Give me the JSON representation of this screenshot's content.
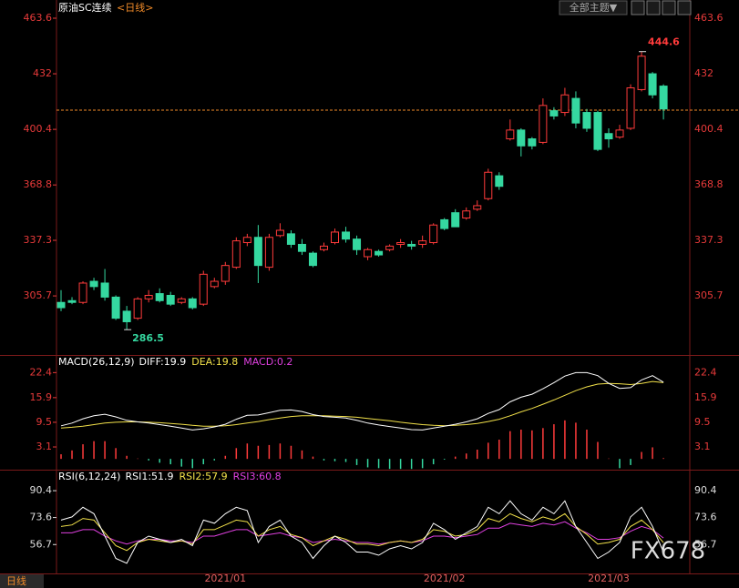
{
  "chart_data": [
    {
      "type": "candlestick",
      "title": "原油SC连续",
      "subtitle": "<日线>",
      "categories": [
        null,
        null,
        null,
        null,
        null,
        null,
        null,
        null,
        null,
        null,
        null,
        null,
        null,
        null,
        null,
        "2021/01",
        null,
        null,
        null,
        null,
        null,
        null,
        null,
        null,
        null,
        null,
        null,
        null,
        null,
        null,
        null,
        null,
        null,
        null,
        null,
        "2021/02",
        null,
        null,
        null,
        null,
        null,
        null,
        null,
        null,
        null,
        null,
        null,
        null,
        null,
        null,
        "2021/03",
        null,
        null,
        null,
        null,
        null
      ],
      "open": [
        302,
        303,
        302,
        314,
        313,
        305,
        297,
        293,
        304,
        307,
        306,
        302,
        304,
        301,
        311,
        314,
        322,
        336,
        339,
        322,
        340,
        341,
        335,
        330,
        332,
        336,
        342,
        338,
        328,
        331,
        332,
        335,
        335,
        335,
        336,
        349,
        353,
        350,
        355,
        361,
        374,
        395,
        400,
        395,
        393,
        411,
        410,
        418,
        410,
        410,
        398,
        396,
        401,
        423,
        432,
        425
      ],
      "high": [
        309,
        305,
        314,
        316,
        321,
        306,
        300,
        305,
        309,
        310,
        308,
        305,
        305,
        320,
        316,
        325,
        339,
        341,
        346,
        341,
        347,
        343,
        338,
        331,
        336,
        344,
        345,
        340,
        333,
        332,
        335,
        338,
        337,
        340,
        347,
        350,
        355,
        356,
        360,
        378,
        376,
        406,
        401,
        396,
        418,
        413,
        424,
        422,
        412,
        411,
        401,
        403,
        426,
        444.6,
        433,
        426
      ],
      "low": [
        297,
        301,
        301,
        309,
        303,
        292,
        286.5,
        292,
        302,
        302,
        300,
        301,
        298,
        300,
        310,
        312,
        321,
        334,
        313,
        320,
        339,
        333,
        329,
        322,
        331,
        335,
        336,
        329,
        326,
        328,
        331,
        333,
        332,
        333,
        335,
        343,
        345,
        349,
        354,
        360,
        366,
        394,
        385,
        389,
        392,
        406,
        408,
        401,
        399,
        388,
        390,
        395,
        400,
        422,
        418,
        406
      ],
      "close": [
        299,
        302,
        313,
        311,
        305,
        293,
        291,
        304,
        306,
        303,
        301,
        304,
        299,
        318,
        314,
        323,
        337,
        339,
        323,
        339,
        343,
        335,
        331,
        323,
        334,
        342,
        338,
        332,
        332,
        329,
        334,
        336,
        334,
        337,
        346,
        344,
        345,
        354,
        357,
        376,
        368,
        400,
        391,
        391,
        414,
        408,
        420,
        404,
        401,
        389,
        395,
        400,
        424,
        442,
        420,
        412
      ],
      "up_color": "#ff3b3b",
      "down_color": "#35d8a0",
      "ylim": [
        272.1,
        463.6
      ],
      "yticks": [
        305.7,
        337.3,
        368.8,
        400.4,
        432.0,
        463.6
      ],
      "last_price": 411.3,
      "last_price_color": "#f08a28",
      "max_label": "444.6",
      "min_label": "286.5"
    },
    {
      "type": "macd",
      "title": "MACD(26,12,9)",
      "series": [
        {
          "name": "DIFF:19.9",
          "color": "#ffffff",
          "values": [
            8.6,
            9.3,
            10.4,
            11.2,
            11.6,
            10.9,
            10.0,
            9.6,
            9.3,
            8.9,
            8.5,
            8.0,
            7.5,
            7.8,
            8.3,
            9.0,
            10.3,
            11.3,
            11.4,
            12.0,
            12.6,
            12.7,
            12.3,
            11.5,
            11.0,
            10.8,
            10.6,
            10.0,
            9.3,
            8.8,
            8.4,
            8.0,
            7.6,
            7.5,
            8.0,
            8.5,
            9.0,
            9.6,
            10.4,
            11.8,
            12.8,
            14.8,
            16.0,
            16.8,
            18.2,
            19.8,
            21.5,
            22.4,
            22.4,
            21.6,
            19.6,
            18.3,
            18.5,
            20.5,
            21.6,
            19.9
          ]
        },
        {
          "name": "DEA:19.8",
          "color": "#f2e14a",
          "values": [
            8.0,
            8.2,
            8.5,
            8.9,
            9.3,
            9.5,
            9.6,
            9.6,
            9.5,
            9.4,
            9.2,
            9.0,
            8.7,
            8.5,
            8.5,
            8.6,
            8.9,
            9.3,
            9.7,
            10.2,
            10.6,
            11.0,
            11.2,
            11.2,
            11.2,
            11.1,
            11.0,
            10.8,
            10.5,
            10.2,
            9.9,
            9.5,
            9.2,
            8.9,
            8.7,
            8.6,
            8.7,
            8.9,
            9.2,
            9.7,
            10.3,
            11.2,
            12.2,
            13.1,
            14.2,
            15.3,
            16.5,
            17.7,
            18.7,
            19.4,
            19.6,
            19.5,
            19.3,
            19.6,
            20.1,
            19.8
          ]
        },
        {
          "name": "MACD:0.2",
          "color": "#e040e0",
          "up_color": "#ff3b3b",
          "down_color": "#35d8a0",
          "values": [
            1.2,
            2.2,
            3.8,
            4.6,
            4.6,
            2.8,
            0.8,
            0.1,
            -0.4,
            -1.0,
            -1.4,
            -2.0,
            -2.4,
            -1.4,
            -0.4,
            0.8,
            2.8,
            4.0,
            3.4,
            3.6,
            4.0,
            3.4,
            2.2,
            0.6,
            -0.4,
            -0.6,
            -0.8,
            -1.6,
            -2.2,
            -2.4,
            -2.6,
            -2.6,
            -2.6,
            -2.4,
            -1.4,
            -0.2,
            0.6,
            1.4,
            2.4,
            4.2,
            5.0,
            7.2,
            7.6,
            7.4,
            8.0,
            9.0,
            10.0,
            9.4,
            7.6,
            4.4,
            0.1,
            -2.4,
            -1.6,
            1.8,
            3.0,
            0.2
          ]
        }
      ],
      "ylim": [
        -2.8,
        26.5
      ],
      "yticks": [
        3.1,
        9.5,
        15.9,
        22.4
      ]
    },
    {
      "type": "line",
      "title": "RSI(6,12,24)",
      "series": [
        {
          "name": "RSI1:51.9",
          "color": "#ffffff",
          "values": [
            72,
            74,
            80,
            76,
            62,
            48,
            45,
            58,
            62,
            60,
            58,
            60,
            56,
            72,
            70,
            76,
            80,
            78,
            58,
            68,
            72,
            62,
            58,
            48,
            56,
            62,
            58,
            52,
            52,
            50,
            54,
            56,
            54,
            58,
            70,
            66,
            60,
            64,
            68,
            80,
            76,
            84,
            76,
            72,
            80,
            76,
            84,
            68,
            58,
            48,
            52,
            58,
            74,
            80,
            68,
            51.9
          ]
        },
        {
          "name": "RSI2:57.9",
          "color": "#f2e14a",
          "values": [
            68,
            69,
            73,
            72,
            64,
            56,
            53,
            58,
            60,
            59,
            58,
            59,
            57,
            66,
            66,
            69,
            72,
            71,
            62,
            66,
            68,
            63,
            61,
            56,
            59,
            62,
            60,
            57,
            57,
            56,
            58,
            59,
            58,
            60,
            66,
            65,
            62,
            63,
            66,
            73,
            71,
            76,
            73,
            71,
            74,
            72,
            76,
            68,
            63,
            57,
            58,
            60,
            68,
            72,
            66,
            57.9
          ]
        },
        {
          "name": "RSI3:60.8",
          "color": "#e040e0",
          "values": [
            64,
            64,
            66,
            66,
            62,
            59,
            57,
            59,
            60,
            60,
            59,
            59,
            58,
            62,
            62,
            64,
            66,
            66,
            62,
            63,
            64,
            62,
            61,
            58,
            59,
            60,
            59,
            58,
            58,
            57,
            58,
            59,
            58,
            59,
            62,
            62,
            61,
            62,
            63,
            67,
            67,
            70,
            69,
            68,
            70,
            69,
            71,
            67,
            64,
            60,
            60,
            61,
            65,
            68,
            66,
            60.8
          ]
        }
      ],
      "ylim": [
        40,
        102.4
      ],
      "yticks": [
        56.7,
        73.6,
        90.4
      ]
    }
  ],
  "ui": {
    "theme_button": "全部主题▼",
    "period_tab": "日线",
    "watermark": "FX678"
  }
}
